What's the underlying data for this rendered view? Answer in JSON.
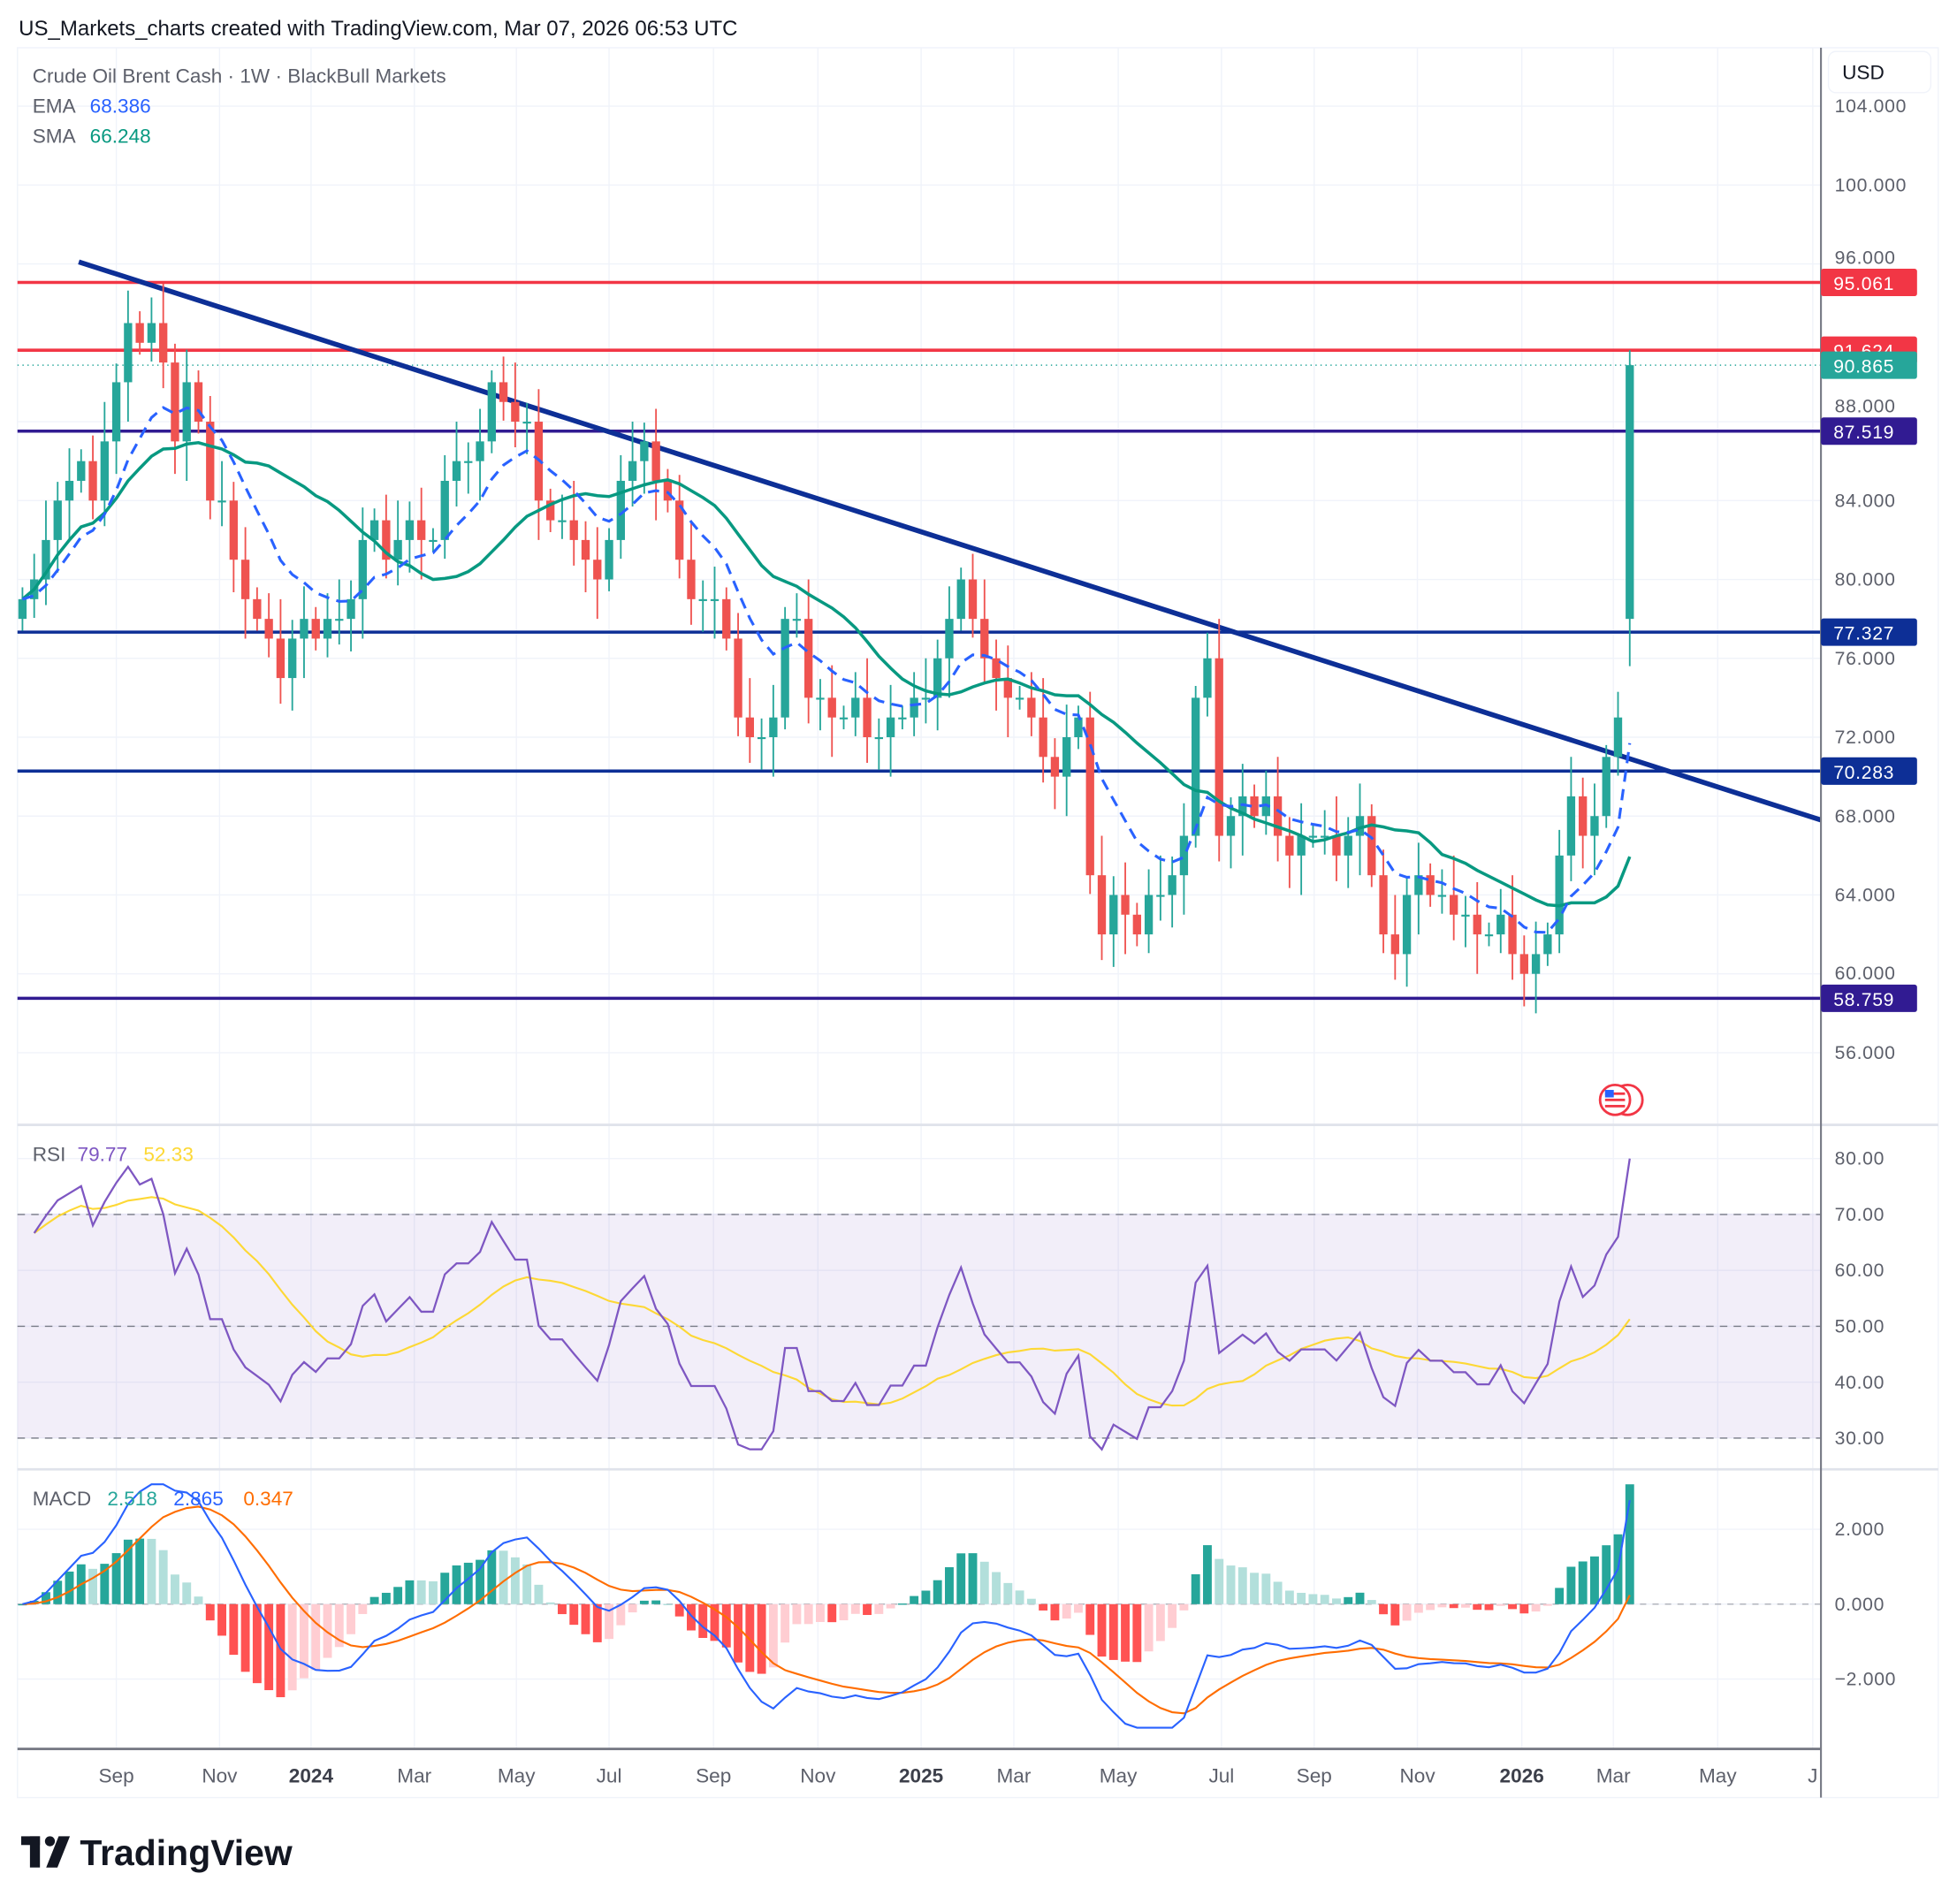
{
  "header": {
    "title": "US_Markets_charts created with TradingView.com, Mar 07, 2026 06:53 UTC"
  },
  "legend": {
    "symbol": "Crude Oil Brent Cash · 1W · BlackBull Markets",
    "ema_label": "EMA",
    "ema_value": "68.386",
    "sma_label": "SMA",
    "sma_value": "66.248",
    "rsi_label": "RSI",
    "rsi_value": "79.77",
    "rsi_ma_value": "52.33",
    "macd_label": "MACD",
    "macd_hist": "2.518",
    "macd_line": "2.865",
    "macd_signal": "0.347"
  },
  "currency_button": "USD",
  "logo_text": "TradingView",
  "colors": {
    "up": "#26a69a",
    "down": "#ef5350",
    "ema": "#2962ff",
    "sma": "#089981",
    "trend": "#0d2f96",
    "rsi": "#7e57c2",
    "rsi_ma": "#fdd835",
    "macd": "#2962ff",
    "signal": "#ff6d00"
  },
  "chart_data": {
    "type": "candlestick",
    "interval": "1W",
    "ylim": [
      53,
      106
    ],
    "price_ticks": [
      "104.000",
      "100.000",
      "96.000",
      "88.000",
      "84.000",
      "80.000",
      "76.000",
      "72.000",
      "68.000",
      "64.000",
      "60.000",
      "56.000"
    ],
    "price_tick_values": [
      104,
      100,
      96,
      88,
      84,
      80,
      76,
      72,
      68,
      64,
      60,
      56
    ],
    "time_ticks": [
      {
        "label": "Sep",
        "week": 8.0,
        "year": false
      },
      {
        "label": "Nov",
        "week": 16.8,
        "year": false
      },
      {
        "label": "2024",
        "week": 24.6,
        "year": true
      },
      {
        "label": "Mar",
        "week": 33.4,
        "year": false
      },
      {
        "label": "May",
        "week": 42.1,
        "year": false
      },
      {
        "label": "Jul",
        "week": 50.0,
        "year": false
      },
      {
        "label": "Sep",
        "week": 58.9,
        "year": false
      },
      {
        "label": "Nov",
        "week": 67.8,
        "year": false
      },
      {
        "label": "2025",
        "week": 76.6,
        "year": true
      },
      {
        "label": "Mar",
        "week": 84.5,
        "year": false
      },
      {
        "label": "May",
        "week": 93.4,
        "year": false
      },
      {
        "label": "Jul",
        "week": 102.2,
        "year": false
      },
      {
        "label": "Sep",
        "week": 110.1,
        "year": false
      },
      {
        "label": "Nov",
        "week": 118.9,
        "year": false
      },
      {
        "label": "2026",
        "week": 127.8,
        "year": true
      },
      {
        "label": "Mar",
        "week": 135.6,
        "year": false
      },
      {
        "label": "May",
        "week": 144.5,
        "year": false
      },
      {
        "label": "J",
        "week": 152.6,
        "year": false
      }
    ],
    "close": [
      79,
      80,
      82,
      84,
      85,
      86,
      84,
      87,
      90,
      93,
      92,
      93,
      91,
      87,
      90,
      88,
      84,
      84,
      81,
      79,
      78,
      77,
      75,
      77,
      78,
      77,
      78,
      78,
      79,
      82,
      83,
      81,
      82,
      83,
      82,
      82,
      85,
      86,
      86,
      87,
      90,
      89,
      88,
      88,
      84,
      83,
      83,
      82,
      81,
      80,
      82,
      85,
      86,
      87,
      85,
      84,
      81,
      79,
      79,
      79,
      77,
      73,
      72,
      72,
      73,
      78,
      78,
      74,
      74,
      73,
      73,
      74,
      72,
      72,
      73,
      73,
      74,
      74,
      76,
      78,
      80,
      78,
      76,
      75,
      74,
      74,
      73,
      71,
      70,
      72,
      73,
      65,
      62,
      64,
      63,
      62,
      64,
      64,
      65,
      67,
      74,
      76,
      67,
      68,
      69,
      68,
      69,
      67,
      66,
      67,
      67,
      67,
      66,
      67,
      68,
      65,
      62,
      61,
      64,
      65,
      64,
      64,
      63,
      63,
      62,
      62,
      63,
      61,
      60,
      61,
      62,
      66,
      69,
      67,
      68,
      71,
      73
    ],
    "last_candle": {
      "open": 78.0,
      "high": 91.624,
      "low": 75.6,
      "close": 90.865
    },
    "levels": [
      {
        "label": "95.061",
        "value": 95.061,
        "color": "#f23645"
      },
      {
        "label": "91.624",
        "value": 91.624,
        "color": "#f23645"
      },
      {
        "label": "87.519",
        "value": 87.519,
        "color": "#311b92"
      },
      {
        "label": "77.327",
        "value": 77.327,
        "color": "#0d2f96"
      },
      {
        "label": "70.283",
        "value": 70.283,
        "color": "#0d2f96"
      },
      {
        "label": "58.759",
        "value": 58.759,
        "color": "#311b92"
      }
    ],
    "current_price": {
      "label": "90.865",
      "value": 90.865,
      "color": "#26a69a"
    },
    "trendline": {
      "from": [
        4.8,
        96.1
      ],
      "to": [
        153.3,
        67.8
      ]
    },
    "rsi": {
      "ticks": [
        "80.00",
        "70.00",
        "60.00",
        "50.00",
        "40.00",
        "30.00"
      ],
      "tick_values": [
        80,
        70,
        60,
        50,
        40,
        30
      ],
      "overbought": 70,
      "oversold": 30
    },
    "macd": {
      "ticks": [
        "2.000",
        "0.000",
        "−2.000"
      ],
      "tick_values": [
        2,
        0,
        -2
      ]
    }
  }
}
